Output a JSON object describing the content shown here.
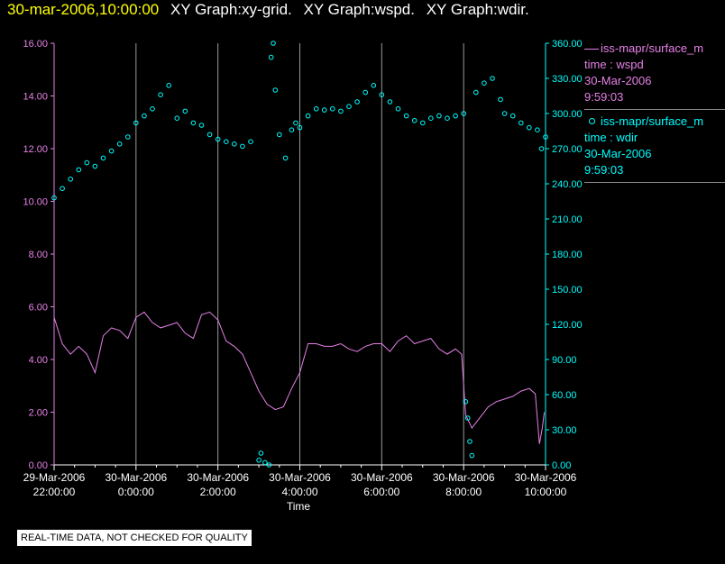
{
  "header": {
    "timestamp": "30-mar-2006,10:00:00",
    "graphs": [
      "XY Graph:xy-grid.",
      "XY Graph:wspd.",
      "XY Graph:wdir."
    ]
  },
  "legend": [
    {
      "symbol": "line",
      "color": "#e680e6",
      "name": "iss-mapr/surface_m",
      "lines": [
        "time : wspd",
        "30-Mar-2006",
        "9:59:03"
      ]
    },
    {
      "symbol": "circle",
      "color": "#00ffff",
      "name": "iss-mapr/surface_m",
      "lines": [
        "time : wdir",
        "30-Mar-2006",
        "9:59:03"
      ]
    }
  ],
  "note": "REAL-TIME DATA, NOT CHECKED FOR QUALITY",
  "chart_data": {
    "type": "line",
    "xlabel": "Time",
    "x_ticks": [
      {
        "date": "29-Mar-2006",
        "time": "22:00:00",
        "hour": -2
      },
      {
        "date": "30-Mar-2006",
        "time": "0:00:00",
        "hour": 0
      },
      {
        "date": "30-Mar-2006",
        "time": "2:00:00",
        "hour": 2
      },
      {
        "date": "30-Mar-2006",
        "time": "4:00:00",
        "hour": 4
      },
      {
        "date": "30-Mar-2006",
        "time": "6:00:00",
        "hour": 6
      },
      {
        "date": "30-Mar-2006",
        "time": "8:00:00",
        "hour": 8
      },
      {
        "date": "30-Mar-2006",
        "time": "10:00:00",
        "hour": 10
      }
    ],
    "xlim_hours": [
      -2,
      10
    ],
    "y_left": {
      "ticks": [
        "0.00",
        "2.00",
        "4.00",
        "6.00",
        "8.00",
        "10.00",
        "12.00",
        "14.00",
        "16.00"
      ],
      "lim": [
        0,
        16
      ],
      "color": "#e680e6"
    },
    "y_right": {
      "ticks": [
        "0.00",
        "30.00",
        "60.00",
        "90.00",
        "120.00",
        "150.00",
        "180.00",
        "210.00",
        "240.00",
        "270.00",
        "300.00",
        "330.00",
        "360.00"
      ],
      "lim": [
        0,
        360
      ],
      "color": "#00ffff"
    },
    "grid": "vertical",
    "series": [
      {
        "name": "wspd",
        "axis": "left",
        "style": "line",
        "color": "#e680e6",
        "x": [
          -2.0,
          -1.8,
          -1.6,
          -1.4,
          -1.2,
          -1.0,
          -0.8,
          -0.6,
          -0.4,
          -0.2,
          0.0,
          0.2,
          0.4,
          0.6,
          0.8,
          1.0,
          1.2,
          1.4,
          1.6,
          1.8,
          2.0,
          2.2,
          2.4,
          2.6,
          2.8,
          3.0,
          3.2,
          3.4,
          3.6,
          3.8,
          4.0,
          4.2,
          4.4,
          4.6,
          4.8,
          5.0,
          5.2,
          5.4,
          5.6,
          5.8,
          6.0,
          6.2,
          6.4,
          6.6,
          6.8,
          7.0,
          7.2,
          7.4,
          7.6,
          7.8,
          7.95,
          8.05,
          8.2,
          8.4,
          8.6,
          8.8,
          9.0,
          9.2,
          9.4,
          9.6,
          9.75,
          9.85,
          9.92,
          9.97
        ],
        "y": [
          5.6,
          4.6,
          4.2,
          4.5,
          4.2,
          3.5,
          4.9,
          5.2,
          5.1,
          4.8,
          5.6,
          5.8,
          5.4,
          5.2,
          5.3,
          5.4,
          5.0,
          4.8,
          5.7,
          5.8,
          5.5,
          4.7,
          4.5,
          4.2,
          3.5,
          2.8,
          2.3,
          2.1,
          2.2,
          2.9,
          3.5,
          4.6,
          4.6,
          4.5,
          4.5,
          4.6,
          4.4,
          4.3,
          4.5,
          4.6,
          4.6,
          4.3,
          4.7,
          4.9,
          4.6,
          4.7,
          4.8,
          4.4,
          4.2,
          4.4,
          4.2,
          1.9,
          1.4,
          1.8,
          2.2,
          2.4,
          2.5,
          2.6,
          2.8,
          2.9,
          2.7,
          0.8,
          1.4,
          2.0
        ]
      },
      {
        "name": "wdir",
        "axis": "right",
        "style": "markers",
        "color": "#00ffff",
        "x": [
          -2.0,
          -1.8,
          -1.6,
          -1.4,
          -1.2,
          -1.0,
          -0.8,
          -0.6,
          -0.4,
          -0.2,
          0.0,
          0.2,
          0.4,
          0.6,
          0.8,
          1.0,
          1.2,
          1.4,
          1.6,
          1.8,
          2.0,
          2.2,
          2.4,
          2.6,
          2.8,
          3.0,
          3.05,
          3.15,
          3.25,
          3.35,
          3.3,
          3.4,
          3.5,
          3.65,
          3.8,
          3.9,
          4.0,
          4.2,
          4.4,
          4.6,
          4.8,
          5.0,
          5.2,
          5.4,
          5.6,
          5.8,
          6.0,
          6.2,
          6.4,
          6.6,
          6.8,
          7.0,
          7.2,
          7.4,
          7.6,
          7.8,
          8.0,
          8.05,
          8.1,
          8.15,
          8.2,
          8.3,
          8.5,
          8.7,
          8.9,
          9.0,
          9.2,
          9.4,
          9.6,
          9.8,
          9.9,
          10.0
        ],
        "y": [
          228,
          236,
          244,
          252,
          258,
          255,
          262,
          268,
          274,
          280,
          292,
          298,
          304,
          316,
          324,
          296,
          302,
          292,
          290,
          282,
          278,
          276,
          274,
          272,
          276,
          4,
          10,
          2,
          0,
          360,
          348,
          320,
          282,
          262,
          286,
          292,
          288,
          298,
          304,
          303,
          304,
          302,
          306,
          310,
          318,
          324,
          316,
          310,
          304,
          298,
          294,
          292,
          296,
          298,
          296,
          298,
          300,
          54,
          40,
          20,
          8,
          318,
          326,
          330,
          312,
          300,
          298,
          292,
          288,
          286,
          270,
          280
        ]
      }
    ]
  }
}
